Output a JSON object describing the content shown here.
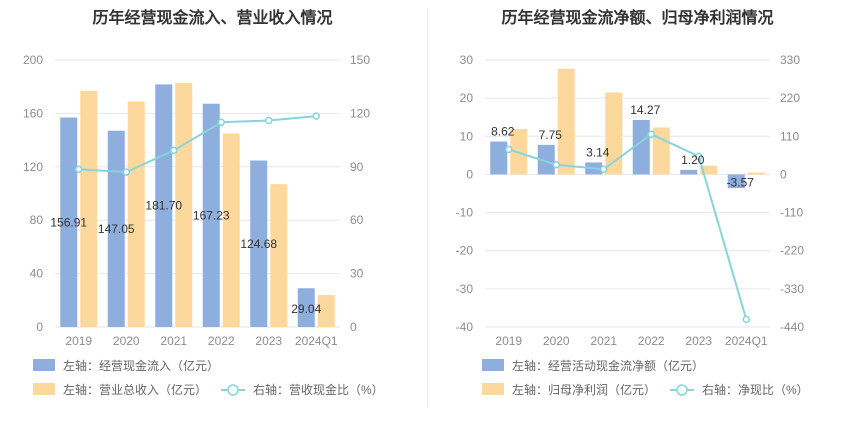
{
  "chart_data": [
    {
      "type": "bar",
      "title": "历年经营现金流入、营业收入情况",
      "categories": [
        "2019",
        "2020",
        "2021",
        "2022",
        "2023",
        "2024Q1"
      ],
      "left_axis": {
        "ticks": [
          "0",
          "40",
          "80",
          "120",
          "160",
          "200"
        ],
        "ylim": [
          0,
          200
        ]
      },
      "right_axis": {
        "ticks": [
          "0",
          "30",
          "60",
          "90",
          "120",
          "150"
        ],
        "ylim": [
          0,
          150
        ]
      },
      "series": [
        {
          "name": "左轴：经营现金流入（亿元）",
          "type": "bar",
          "axis": "left",
          "color": "#8eaedd",
          "values": [
            156.91,
            147.05,
            181.7,
            167.23,
            124.68,
            29.04
          ],
          "labels": [
            "156.91",
            "147.05",
            "181.70",
            "167.23",
            "124.68",
            "29.04"
          ]
        },
        {
          "name": "左轴：营业总收入（亿元）",
          "type": "bar",
          "axis": "left",
          "color": "#fdd89c",
          "values": [
            177,
            169,
            183,
            145,
            107,
            24
          ]
        },
        {
          "name": "右轴：营收现金比（%）",
          "type": "line",
          "axis": "right",
          "color": "#86d4dc",
          "values": [
            88.6,
            87,
            99.2,
            115,
            116,
            118.5
          ]
        }
      ],
      "grid": true,
      "legend_position": "bottom"
    },
    {
      "type": "bar",
      "title": "历年经营现金流净额、归母净利润情况",
      "categories": [
        "2019",
        "2020",
        "2021",
        "2022",
        "2023",
        "2024Q1"
      ],
      "left_axis": {
        "ticks": [
          "-40",
          "-30",
          "-20",
          "-10",
          "0",
          "10",
          "20",
          "30"
        ],
        "ylim": [
          -40,
          30
        ]
      },
      "right_axis": {
        "ticks": [
          "-440",
          "-330",
          "-220",
          "-110",
          "0",
          "110",
          "220",
          "330"
        ],
        "ylim": [
          -440,
          330
        ]
      },
      "series": [
        {
          "name": "左轴：经营活动现金流净额（亿元）",
          "type": "bar",
          "axis": "left",
          "color": "#8eaedd",
          "values": [
            8.62,
            7.75,
            3.14,
            14.27,
            1.2,
            -3.57
          ],
          "labels": [
            "8.62",
            "7.75",
            "3.14",
            "14.27",
            "1.20",
            "-3.57"
          ]
        },
        {
          "name": "左轴：归母净利润（亿元）",
          "type": "bar",
          "axis": "left",
          "color": "#fdd89c",
          "values": [
            11.9,
            27.7,
            21.5,
            12.3,
            2.3,
            0.5
          ]
        },
        {
          "name": "右轴：净现比（%）",
          "type": "line",
          "axis": "right",
          "color": "#86d4dc",
          "values": [
            72,
            28,
            15,
            116,
            52,
            -418
          ]
        }
      ],
      "grid": true,
      "legend_position": "bottom"
    }
  ]
}
